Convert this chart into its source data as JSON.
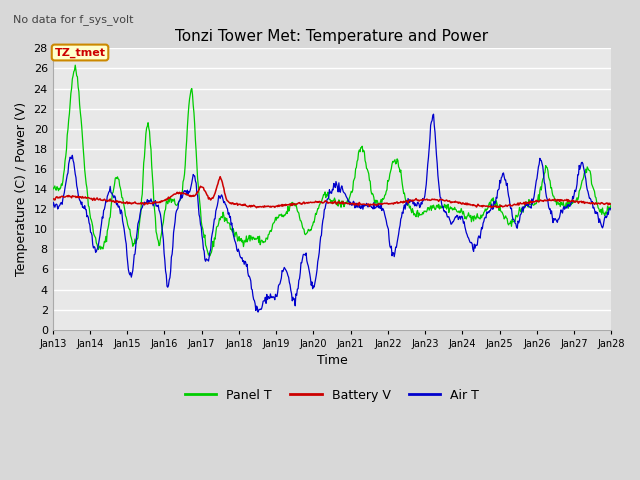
{
  "title": "Tonzi Tower Met: Temperature and Power",
  "top_left_text": "No data for f_sys_volt",
  "legend_label_text": "TZ_tmet",
  "xlabel": "Time",
  "ylabel": "Temperature (C) / Power (V)",
  "ylim": [
    0,
    28
  ],
  "yticks": [
    0,
    2,
    4,
    6,
    8,
    10,
    12,
    14,
    16,
    18,
    20,
    22,
    24,
    26,
    28
  ],
  "xlim_days": [
    13,
    28
  ],
  "xtick_labels": [
    "Jan 13",
    "Jan 14",
    "Jan 15",
    "Jan 16",
    "Jan 17",
    "Jan 18",
    "Jan 19",
    "Jan 20",
    "Jan 21",
    "Jan 22",
    "Jan 23",
    "Jan 24",
    "Jan 25",
    "Jan 26",
    "Jan 27",
    "Jan 28"
  ],
  "color_panel": "#00cc00",
  "color_battery": "#cc0000",
  "color_air": "#0000cc",
  "fig_bg_color": "#d8d8d8",
  "plot_bg_color": "#e8e8e8",
  "grid_color": "#ffffff",
  "legend_items": [
    {
      "label": "Panel T",
      "color": "#00cc00"
    },
    {
      "label": "Battery V",
      "color": "#cc0000"
    },
    {
      "label": "Air T",
      "color": "#0000cc"
    }
  ],
  "tz_tmet_color": "#cc0000",
  "tz_tmet_bg": "#ffffcc",
  "tz_tmet_edge": "#cc8800"
}
